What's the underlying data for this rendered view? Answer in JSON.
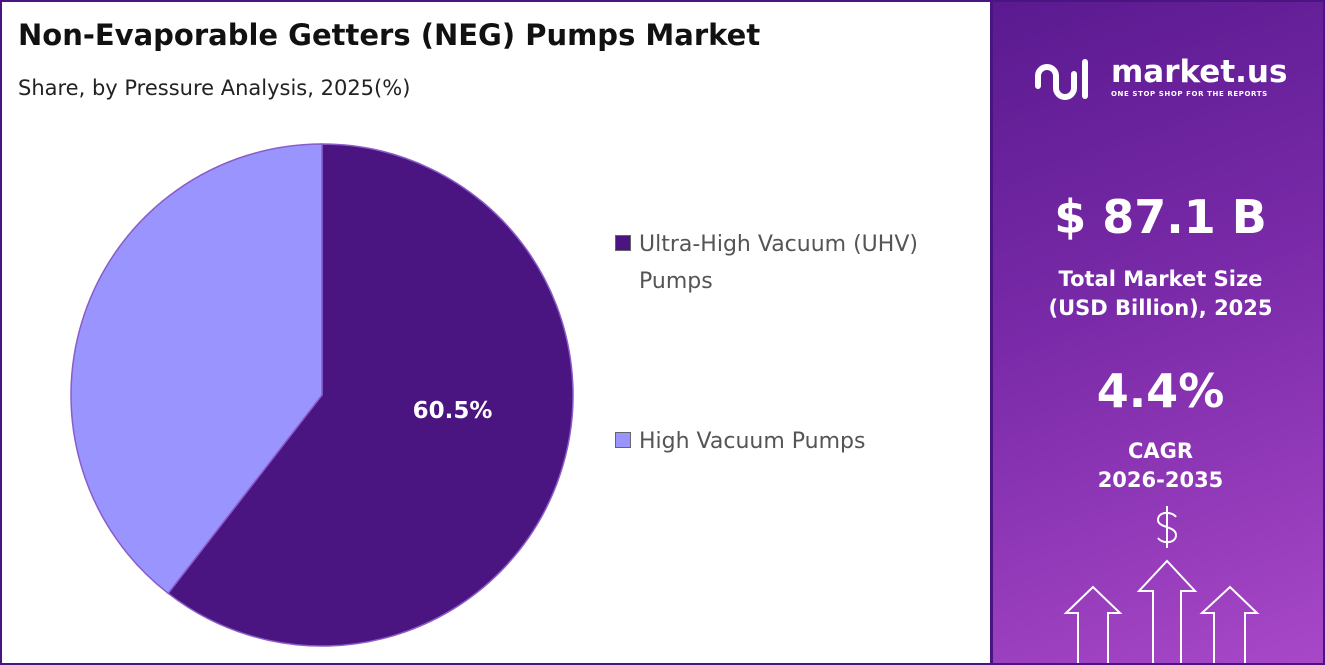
{
  "chart_data": {
    "type": "pie",
    "title": "Non-Evaporable Getters (NEG) Pumps Market",
    "subtitle": "Share, by Pressure Analysis, 2025(%)",
    "categories": [
      "Ultra-High Vacuum (UHV) Pumps",
      "High Vacuum Pumps"
    ],
    "values": [
      60.5,
      39.5
    ],
    "value_labels": [
      "60.5%",
      null
    ],
    "colors": [
      "#4a1580",
      "#9a94ff"
    ]
  },
  "panel": {
    "brand": "market.us",
    "tagline": "ONE STOP SHOP FOR THE REPORTS",
    "market_size": "$ 87.1 B",
    "market_size_caption": [
      "Total Market Size",
      "(USD Billion), 2025"
    ],
    "cagr": "4.4%",
    "cagr_caption": [
      "CAGR",
      "2026-2035"
    ]
  }
}
